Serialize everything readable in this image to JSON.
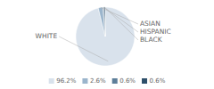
{
  "chart_data": {
    "type": "pie",
    "categories": [
      "WHITE",
      "ASIAN",
      "HISPANIC",
      "BLACK"
    ],
    "values": [
      96.2,
      2.6,
      0.6,
      0.6
    ],
    "value_labels": [
      "96.2%",
      "2.6%",
      "0.6%",
      "0.6%"
    ],
    "colors": [
      "#d9e2ec",
      "#9bb5cc",
      "#5e7f9a",
      "#2e4f6a"
    ],
    "legend": "bottom"
  }
}
